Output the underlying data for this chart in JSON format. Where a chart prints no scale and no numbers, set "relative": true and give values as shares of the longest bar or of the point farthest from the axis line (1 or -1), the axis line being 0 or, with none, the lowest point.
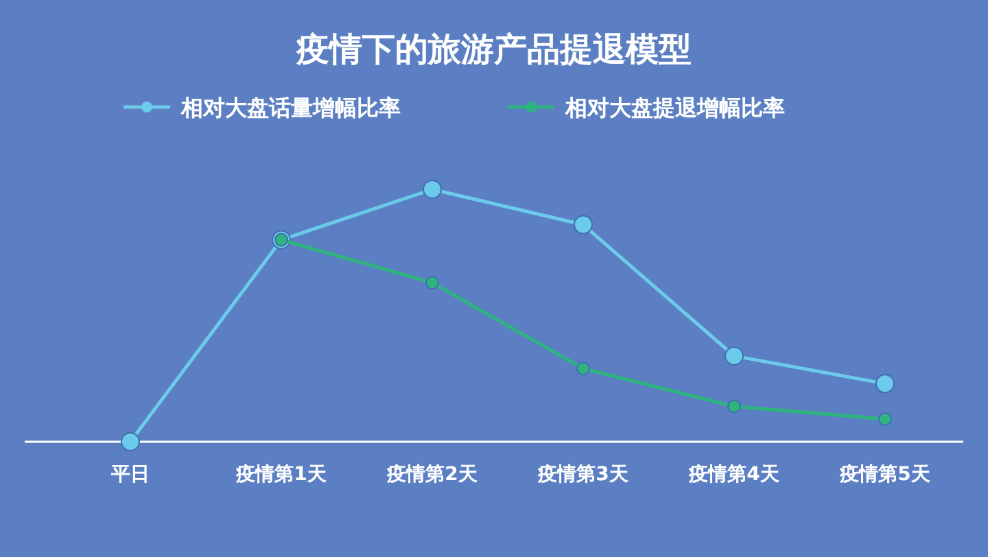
{
  "chart_data": {
    "type": "line",
    "title": "疫情下的旅游产品提退模型",
    "relative": true,
    "marker": "circle",
    "legend": "top",
    "categories": [
      "平日",
      "疫情第1天",
      "疫情第2天",
      "疫情第3天",
      "疫情第4天",
      "疫情第5天"
    ],
    "series": [
      {
        "name": "相对大盘话量增幅比率",
        "color": "#6ccbea",
        "values": [
          0,
          0.8,
          1,
          0.86,
          0.34,
          0.23
        ]
      },
      {
        "name": "相对大盘提退增幅比率",
        "color": "#2fb37f",
        "values": [
          null,
          0.8,
          0.63,
          0.29,
          0.14,
          0.09
        ]
      }
    ]
  }
}
